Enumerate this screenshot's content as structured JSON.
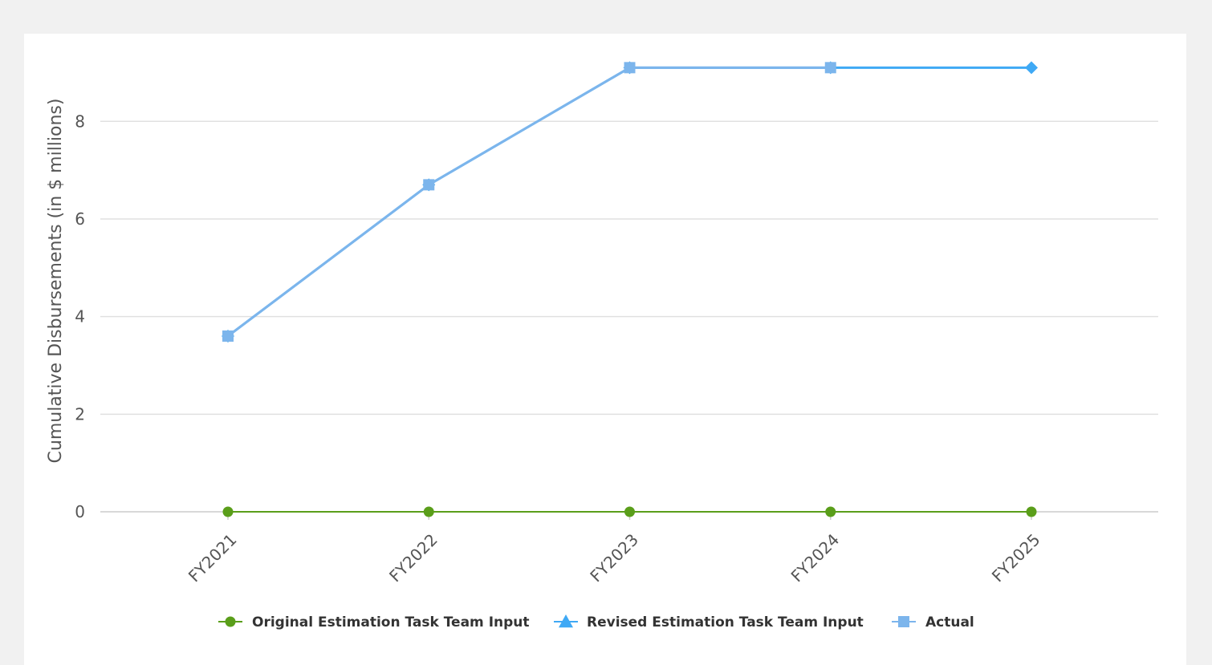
{
  "chart_data": {
    "type": "line",
    "title": "",
    "xlabel": "",
    "ylabel": "Cumulative Disbursements (in $ millions)",
    "categories": [
      "FY2021",
      "FY2022",
      "FY2023",
      "FY2024",
      "FY2025"
    ],
    "ylim": [
      0,
      9.5
    ],
    "yticks": [
      0,
      2,
      4,
      6,
      8
    ],
    "grid": true,
    "legend_position": "bottom",
    "series": [
      {
        "name": "Original Estimation Task Team Input",
        "values": [
          0,
          0,
          0,
          0,
          0
        ],
        "color": "#5a9e1a",
        "marker": "circle"
      },
      {
        "name": "Revised Estimation Task Team Input",
        "values": [
          3.6,
          6.7,
          9.1,
          9.1,
          9.1
        ],
        "color": "#3fa9f5",
        "marker": "diamond"
      },
      {
        "name": "Actual",
        "values": [
          3.6,
          6.7,
          9.1,
          9.1,
          null
        ],
        "color": "#7cb5ec",
        "marker": "square"
      }
    ]
  }
}
